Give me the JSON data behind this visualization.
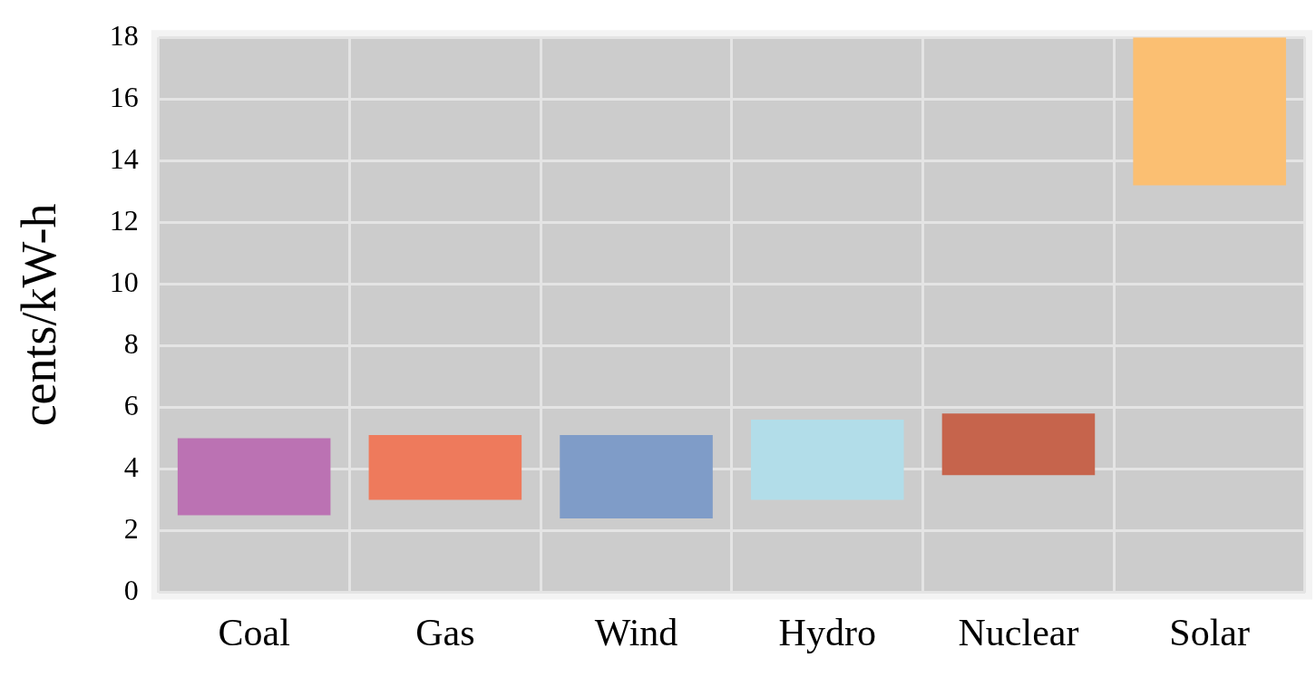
{
  "chart_data": {
    "type": "bar",
    "ylabel": "cents/kW-h",
    "categories": [
      "Coal",
      "Gas",
      "Wind",
      "Hydro",
      "Nuclear",
      "Solar"
    ],
    "base": [
      2.5,
      3.0,
      2.4,
      3.0,
      3.8,
      13.2
    ],
    "values": [
      2.5,
      2.1,
      2.7,
      2.6,
      2.0,
      4.8
    ],
    "colors": [
      "#bb72b3",
      "#ee7a5c",
      "#7f9cc8",
      "#b2dde9",
      "#c6644c",
      "#fbbf72"
    ],
    "ylim": [
      0,
      18
    ],
    "yticks": [
      0,
      2,
      4,
      6,
      8,
      10,
      12,
      14,
      16,
      18
    ],
    "grid": true,
    "legend": false
  }
}
